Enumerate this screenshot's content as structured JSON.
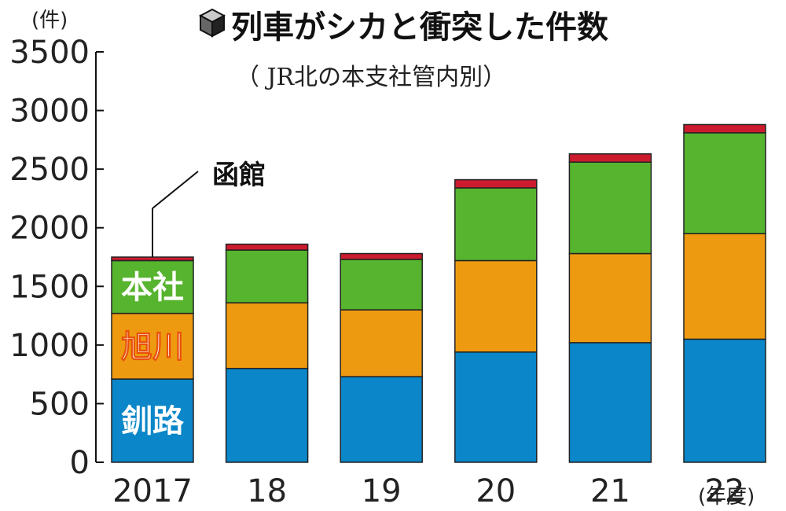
{
  "title": "列車がシカと衝突した件数",
  "subtitle": "（ JR北の本支社管内別）",
  "y_unit_label": "(件)",
  "x_unit_label": "(年度)",
  "callout_label": "函館",
  "colors": {
    "釧路": "#0a86c9",
    "旭川": "#ee9a10",
    "本社": "#56b42e",
    "函館": "#cc1a2e"
  },
  "chart_data": {
    "type": "bar",
    "stacked": true,
    "categories": [
      "2017",
      "18",
      "19",
      "20",
      "21",
      "22"
    ],
    "series": [
      {
        "name": "釧路",
        "values": [
          710,
          800,
          730,
          940,
          1020,
          1050
        ]
      },
      {
        "name": "旭川",
        "values": [
          560,
          560,
          570,
          780,
          760,
          900
        ]
      },
      {
        "name": "本社",
        "values": [
          450,
          450,
          430,
          620,
          780,
          860
        ]
      },
      {
        "name": "函館",
        "values": [
          30,
          50,
          50,
          70,
          70,
          70
        ]
      }
    ],
    "ylabel": "(件)",
    "xlabel": "(年度)",
    "ylim": [
      0,
      3500
    ],
    "yticks": [
      0,
      500,
      1000,
      1500,
      2000,
      2500,
      3000,
      3500
    ],
    "grid": false,
    "legend": "inline-on-first-bar"
  }
}
